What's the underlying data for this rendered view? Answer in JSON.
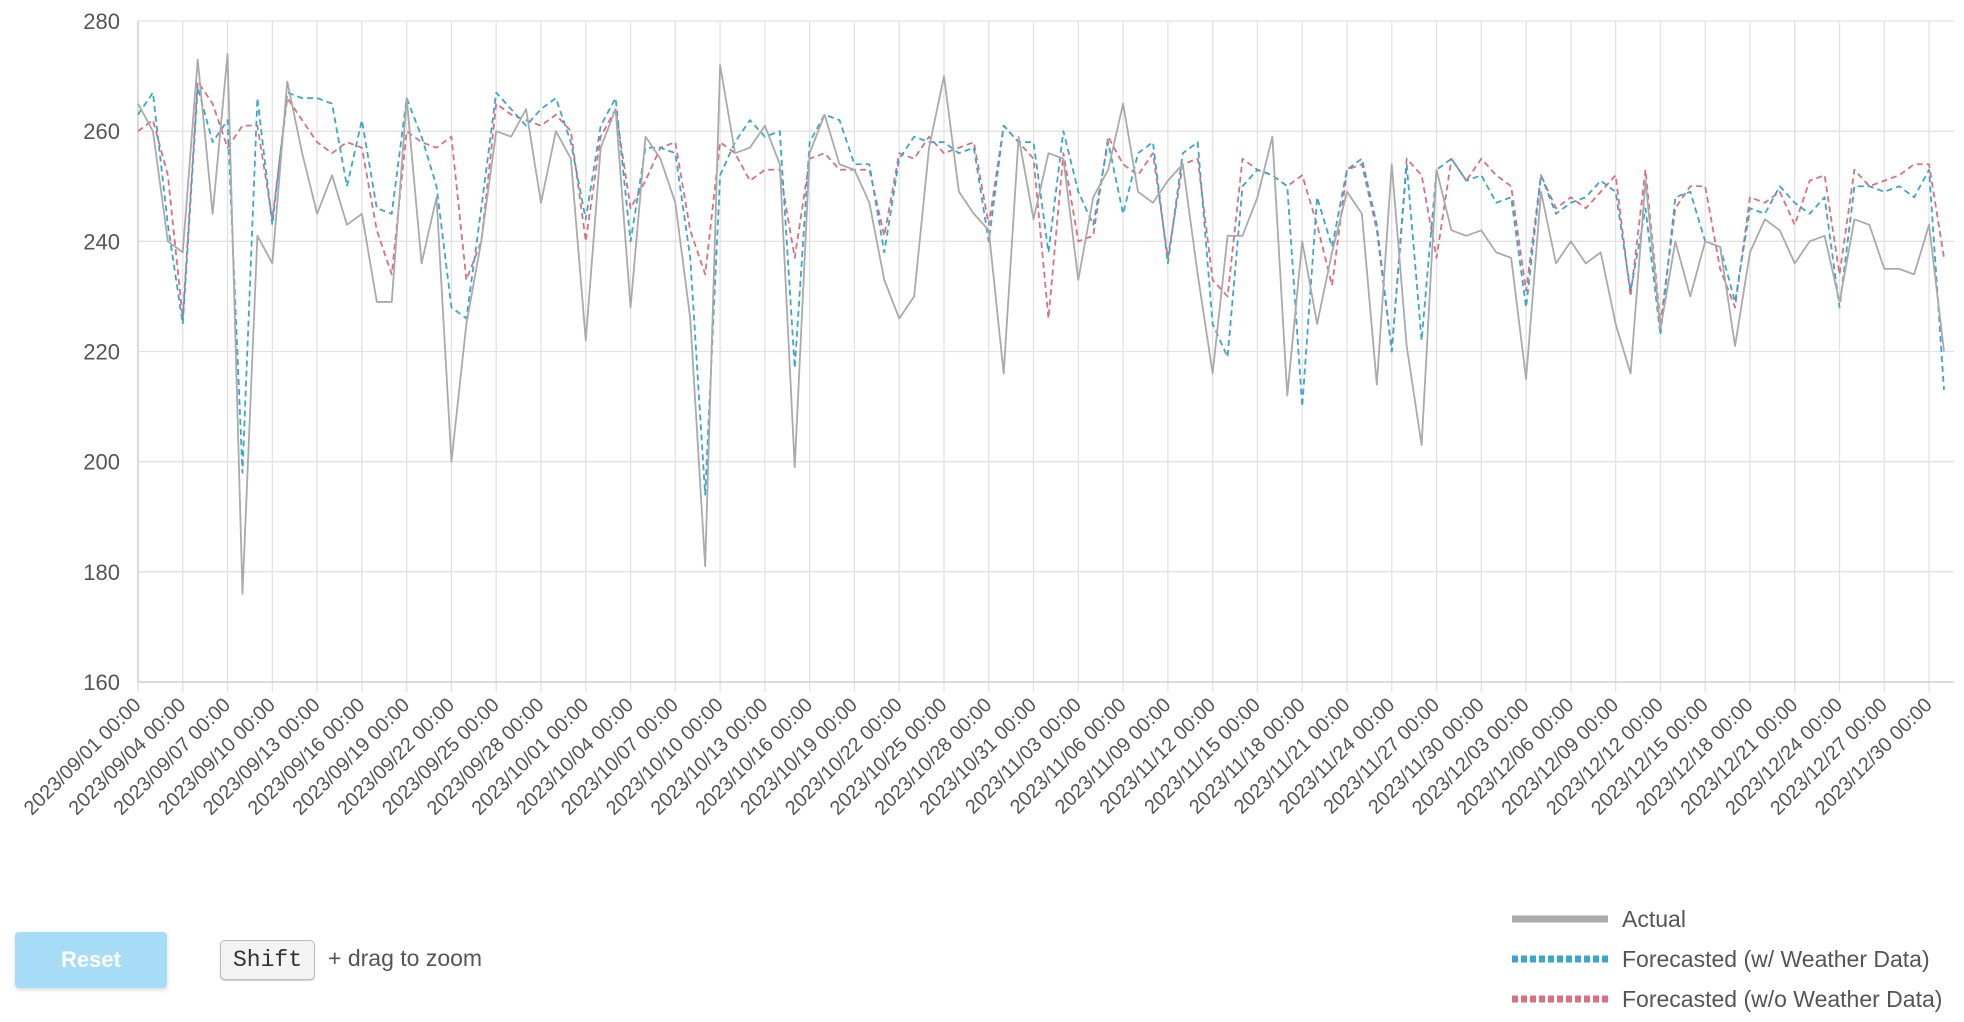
{
  "chart_data": {
    "type": "line",
    "x": [
      "2023/09/01 00:00",
      null,
      null,
      "2023/09/04 00:00",
      null,
      null,
      "2023/09/07 00:00",
      null,
      null,
      "2023/09/10 00:00",
      null,
      null,
      "2023/09/13 00:00",
      null,
      null,
      "2023/09/16 00:00",
      null,
      null,
      "2023/09/19 00:00",
      null,
      null,
      "2023/09/22 00:00",
      null,
      null,
      "2023/09/25 00:00",
      null,
      null,
      "2023/09/28 00:00",
      null,
      null,
      "2023/10/01 00:00",
      null,
      null,
      "2023/10/04 00:00",
      null,
      null,
      "2023/10/07 00:00",
      null,
      null,
      "2023/10/10 00:00",
      null,
      null,
      "2023/10/13 00:00",
      null,
      null,
      "2023/10/16 00:00",
      null,
      null,
      "2023/10/19 00:00",
      null,
      null,
      "2023/10/22 00:00",
      null,
      null,
      "2023/10/25 00:00",
      null,
      null,
      "2023/10/28 00:00",
      null,
      null,
      "2023/10/31 00:00",
      null,
      null,
      "2023/11/03 00:00",
      null,
      null,
      "2023/11/06 00:00",
      null,
      null,
      "2023/11/09 00:00",
      null,
      null,
      "2023/11/12 00:00",
      null,
      null,
      "2023/11/15 00:00",
      null,
      null,
      "2023/11/18 00:00",
      null,
      null,
      "2023/11/21 00:00",
      null,
      null,
      "2023/11/24 00:00",
      null,
      null,
      "2023/11/27 00:00",
      null,
      null,
      "2023/11/30 00:00",
      null,
      null,
      "2023/12/03 00:00",
      null,
      null,
      "2023/12/06 00:00",
      null,
      null,
      "2023/12/09 00:00",
      null,
      null,
      "2023/12/12 00:00",
      null,
      null,
      "2023/12/15 00:00",
      null,
      null,
      "2023/12/18 00:00",
      null,
      null,
      "2023/12/21 00:00",
      null,
      null,
      "2023/12/24 00:00",
      null,
      null,
      "2023/12/27 00:00",
      null,
      null,
      "2023/12/30 00:00",
      null
    ],
    "series": [
      {
        "name": "Actual",
        "color": "#aaaaaa",
        "dashed": false,
        "values": [
          265,
          260,
          240,
          238,
          273,
          245,
          274,
          176,
          241,
          236,
          269,
          256,
          245,
          252,
          243,
          245,
          229,
          229,
          266,
          236,
          248,
          200,
          225,
          240,
          260,
          259,
          264,
          247,
          260,
          255,
          222,
          257,
          264,
          228,
          259,
          255,
          247,
          226,
          181,
          272,
          256,
          257,
          261,
          254,
          199,
          256,
          263,
          254,
          253,
          247,
          233,
          226,
          230,
          257,
          270,
          249,
          245,
          242,
          216,
          259,
          244,
          256,
          255,
          233,
          248,
          253,
          265,
          249,
          247,
          251,
          254,
          234,
          216,
          241,
          241,
          248,
          259,
          212,
          240,
          225,
          238,
          249,
          245,
          214,
          254,
          221,
          203,
          253,
          242,
          241,
          242,
          238,
          237,
          215,
          249,
          236,
          240,
          236,
          238,
          225,
          216,
          251,
          224,
          240,
          230,
          240,
          239,
          221,
          238,
          244,
          242,
          236,
          240,
          241,
          229,
          244,
          243,
          235,
          235,
          234,
          243,
          220
        ]
      },
      {
        "name": "Forecasted (w/ Weather Data)",
        "color": "#3aa6d0",
        "dashed": true,
        "values": [
          263,
          267,
          243,
          225,
          268,
          258,
          262,
          198,
          266,
          243,
          267,
          266,
          266,
          265,
          250,
          262,
          246,
          245,
          266,
          259,
          250,
          228,
          226,
          246,
          267,
          264,
          261,
          264,
          266,
          258,
          244,
          261,
          266,
          240,
          257,
          257,
          256,
          237,
          194,
          252,
          258,
          262,
          259,
          260,
          217,
          258,
          263,
          262,
          254,
          254,
          238,
          255,
          259,
          258,
          258,
          256,
          257,
          240,
          261,
          258,
          258,
          238,
          260,
          249,
          243,
          258,
          245,
          256,
          258,
          236,
          256,
          258,
          225,
          219,
          250,
          253,
          252,
          250,
          210,
          248,
          239,
          253,
          255,
          243,
          220,
          254,
          222,
          253,
          255,
          251,
          252,
          247,
          248,
          228,
          252,
          245,
          247,
          248,
          251,
          249,
          231,
          246,
          223,
          248,
          249,
          240,
          239,
          229,
          246,
          245,
          250,
          247,
          245,
          248,
          228,
          250,
          250,
          249,
          250,
          248,
          253,
          213
        ]
      },
      {
        "name": "Forecasted (w/o Weather Data)",
        "color": "#d9707e",
        "dashed": true,
        "values": [
          260,
          262,
          252,
          226,
          269,
          265,
          257,
          261,
          261,
          244,
          266,
          262,
          258,
          256,
          258,
          257,
          242,
          234,
          260,
          258,
          257,
          259,
          233,
          240,
          265,
          263,
          262,
          261,
          263,
          260,
          240,
          259,
          264,
          246,
          251,
          257,
          258,
          242,
          234,
          258,
          256,
          251,
          253,
          253,
          237,
          255,
          256,
          253,
          253,
          253,
          241,
          256,
          255,
          259,
          256,
          257,
          258,
          243,
          261,
          258,
          255,
          226,
          256,
          240,
          241,
          259,
          254,
          252,
          256,
          237,
          254,
          255,
          233,
          230,
          255,
          253,
          252,
          250,
          252,
          243,
          232,
          253,
          254,
          242,
          220,
          255,
          252,
          237,
          255,
          251,
          255,
          252,
          250,
          231,
          252,
          246,
          248,
          246,
          249,
          252,
          230,
          253,
          225,
          246,
          250,
          250,
          235,
          228,
          248,
          247,
          249,
          243,
          251,
          252,
          234,
          253,
          250,
          251,
          252,
          254,
          254,
          237
        ]
      }
    ],
    "ylim": [
      160,
      280
    ],
    "yticks": [
      160,
      180,
      200,
      220,
      240,
      260,
      280
    ],
    "grid": true,
    "legend": "bottom-right"
  },
  "ui": {
    "reset_button": "Reset",
    "hint_key": "Shift",
    "hint_text": "+ drag to zoom"
  }
}
